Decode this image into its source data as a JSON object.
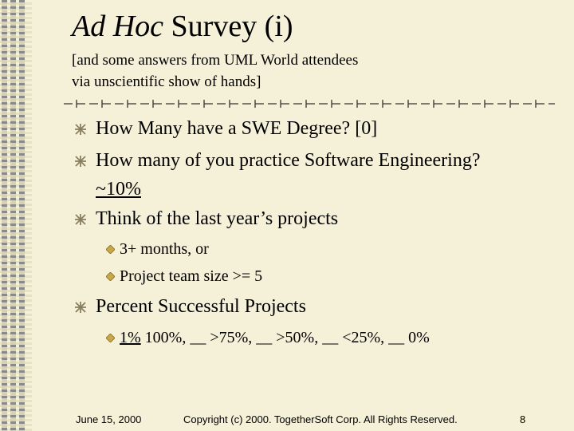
{
  "slide": {
    "title_italic": "Ad Hoc",
    "title_rest": " Survey (i)",
    "subtitle_line1": "[and some answers from UML World attendees",
    "subtitle_line2": "via unscientific show of hands]",
    "bullets": [
      {
        "text": "How Many have a SWE Degree? [0]"
      },
      {
        "text": "How many of you practice Software Engineering?"
      },
      {
        "text": "~10%"
      },
      {
        "text": "Think of the last year’s projects"
      },
      {
        "text": "3+ months, or"
      },
      {
        "text": "Project team size >= 5"
      },
      {
        "text": "Percent Successful Projects"
      },
      {
        "text_underlined": "1%",
        "text_rest": " 100%, __ >75%, __ >50%, __ <25%, __ 0%"
      }
    ],
    "footer": {
      "date": "June 15, 2000",
      "copyright": "Copyright (c) 2000. TogetherSoft Corp. All Rights Reserved.",
      "page_number": "8"
    }
  },
  "colors": {
    "background": "#f5f0d8",
    "bullet_primary": "#8a8060",
    "bullet_secondary": "#c9a84a"
  },
  "icons": {
    "level1_bullet": "asterisk-bullet-icon",
    "level2_bullet": "diamond-bullet-icon"
  }
}
